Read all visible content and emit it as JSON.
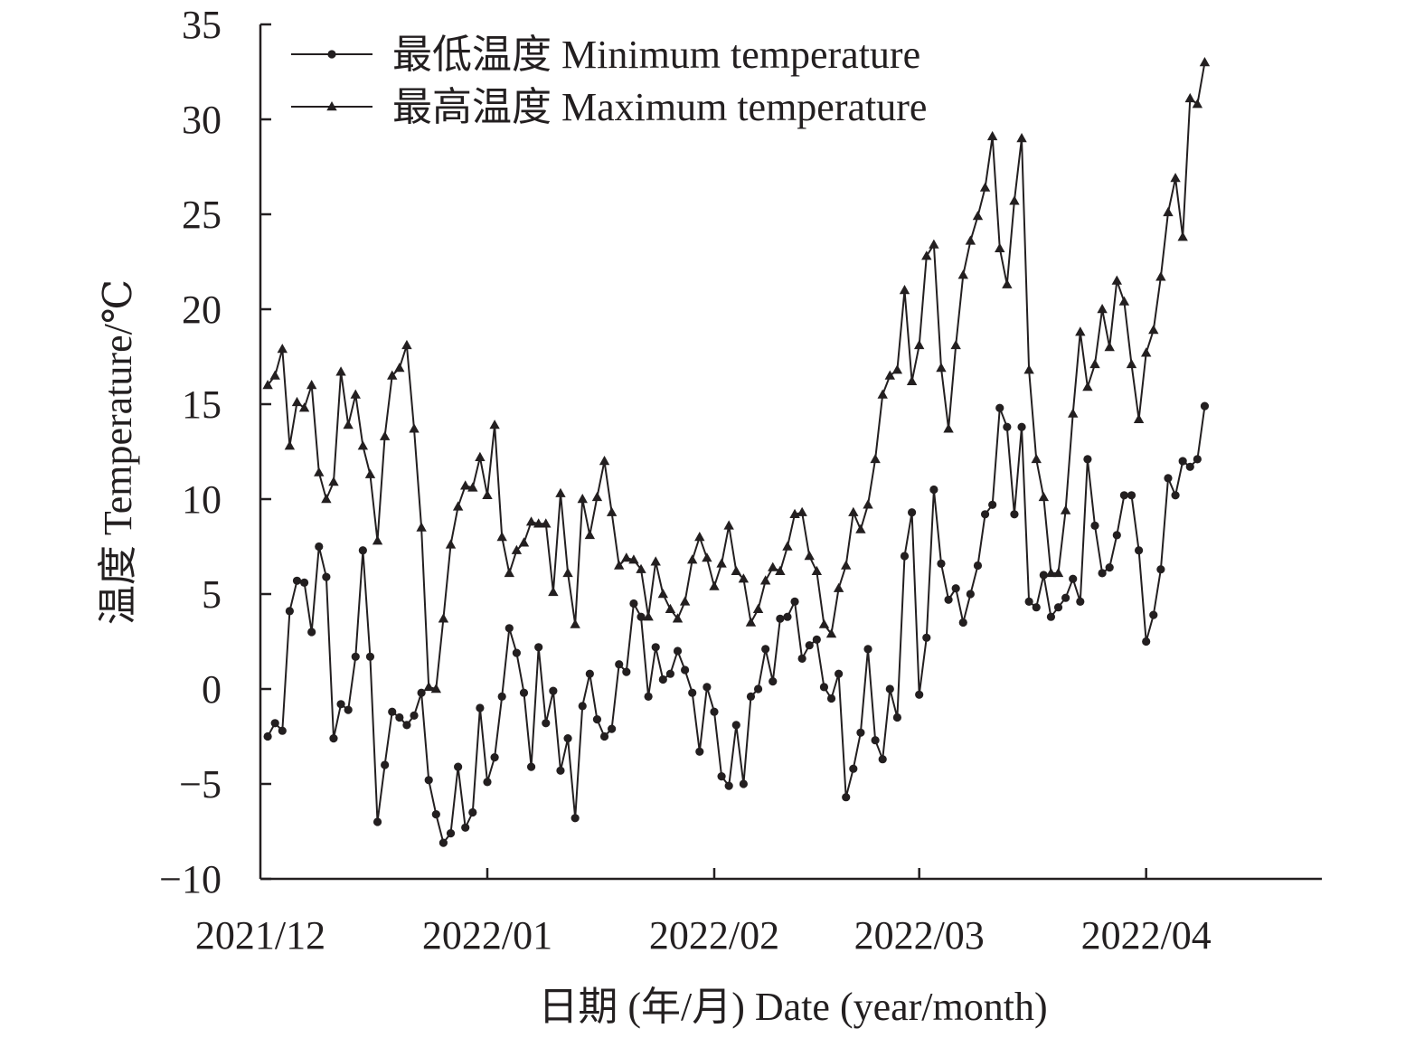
{
  "chart_data": {
    "type": "line",
    "xlabel": "日期 (年/月) Date (year/month)",
    "ylabel": "温度 Temperature/℃",
    "ylim": [
      -10,
      35
    ],
    "y_ticks": [
      -10,
      -5,
      0,
      5,
      10,
      15,
      20,
      25,
      30,
      35
    ],
    "y_tick_labels": [
      "−10",
      "−5",
      "0",
      "5",
      "10",
      "15",
      "20",
      "25",
      "30",
      "35"
    ],
    "x_ticks": [
      "2021/12",
      "2022/01",
      "2022/02",
      "2022/03",
      "2022/04"
    ],
    "x_tick_dates": [
      "2021-12-01",
      "2022-01-01",
      "2022-02-01",
      "2022-03-01",
      "2022-04-01"
    ],
    "xlim": [
      "2021-12-01",
      "2022-04-25"
    ],
    "legend_position": "top-left",
    "series": [
      {
        "name": "最低温度 Minimum temperature",
        "marker": "circle",
        "color": "#231f20",
        "start_date": "2021-12-02",
        "values": [
          -2.5,
          -1.8,
          -2.2,
          4.1,
          5.7,
          5.6,
          3.0,
          7.5,
          5.9,
          -2.6,
          -0.8,
          -1.1,
          1.7,
          7.3,
          1.7,
          -7.0,
          -4.0,
          -1.2,
          -1.5,
          -1.9,
          -1.4,
          -0.2,
          -4.8,
          -6.6,
          -8.1,
          -7.6,
          -4.1,
          -7.3,
          -6.5,
          -1.0,
          -4.9,
          -3.6,
          -0.4,
          3.2,
          1.9,
          -0.2,
          -4.1,
          2.2,
          -1.8,
          -0.1,
          -4.3,
          -2.6,
          -6.8,
          -0.9,
          0.8,
          -1.6,
          -2.5,
          -2.1,
          1.3,
          0.9,
          4.5,
          3.8,
          -0.4,
          2.2,
          0.5,
          0.8,
          2.0,
          1.0,
          -0.2,
          -3.3,
          0.1,
          -1.2,
          -4.6,
          -5.1,
          -1.9,
          -5.0,
          -0.4,
          0.0,
          2.1,
          0.4,
          3.7,
          3.8,
          4.6,
          1.6,
          2.3,
          2.6,
          0.1,
          -0.5,
          0.8,
          -5.7,
          -4.2,
          -2.3,
          2.1,
          -2.7,
          -3.7,
          0.0,
          -1.5,
          7.0,
          9.3,
          -0.3,
          2.7,
          10.5,
          6.6,
          4.7,
          5.3,
          3.5,
          5.0,
          6.5,
          9.2,
          9.7,
          14.8,
          13.8,
          9.2,
          13.8,
          4.6,
          4.3,
          6.0,
          3.8,
          4.3,
          4.8,
          5.8,
          4.6,
          12.1,
          8.6,
          6.1,
          6.4,
          8.1,
          10.2,
          10.2,
          7.3,
          2.5,
          3.9,
          6.3,
          11.1,
          10.2,
          12.0,
          11.7,
          12.1,
          14.9
        ]
      },
      {
        "name": "最高温度 Maximum temperature",
        "marker": "triangle",
        "color": "#231f20",
        "start_date": "2021-12-02",
        "values": [
          16.0,
          16.5,
          17.9,
          12.8,
          15.1,
          14.8,
          16.0,
          11.4,
          10.0,
          10.9,
          16.7,
          13.9,
          15.5,
          12.8,
          11.3,
          7.8,
          13.3,
          16.5,
          16.9,
          18.1,
          13.7,
          8.5,
          0.1,
          0.0,
          3.7,
          7.6,
          9.6,
          10.7,
          10.6,
          12.2,
          10.2,
          13.9,
          8.0,
          6.1,
          7.3,
          7.7,
          8.8,
          8.7,
          8.7,
          5.1,
          10.3,
          6.1,
          3.4,
          10.0,
          8.1,
          10.1,
          12.0,
          9.3,
          6.5,
          6.9,
          6.8,
          6.3,
          3.8,
          6.7,
          5.0,
          4.2,
          3.7,
          4.6,
          6.8,
          8.0,
          6.9,
          5.4,
          6.6,
          8.6,
          6.2,
          5.8,
          3.5,
          4.2,
          5.7,
          6.4,
          6.2,
          7.5,
          9.2,
          9.3,
          7.0,
          6.2,
          3.4,
          2.9,
          5.3,
          6.5,
          9.3,
          8.4,
          9.7,
          12.1,
          15.5,
          16.5,
          16.8,
          21.0,
          16.2,
          18.1,
          22.8,
          23.4,
          16.9,
          13.7,
          18.1,
          21.8,
          23.6,
          24.9,
          26.4,
          29.1,
          23.2,
          21.3,
          25.7,
          29.0,
          16.8,
          12.1,
          10.1,
          6.1,
          6.1,
          9.4,
          14.5,
          18.8,
          15.9,
          17.1,
          20.0,
          18.0,
          21.5,
          20.4,
          17.1,
          14.2,
          17.7,
          18.9,
          21.7,
          25.1,
          26.9,
          23.8,
          31.1,
          30.8,
          33.0
        ]
      }
    ]
  }
}
